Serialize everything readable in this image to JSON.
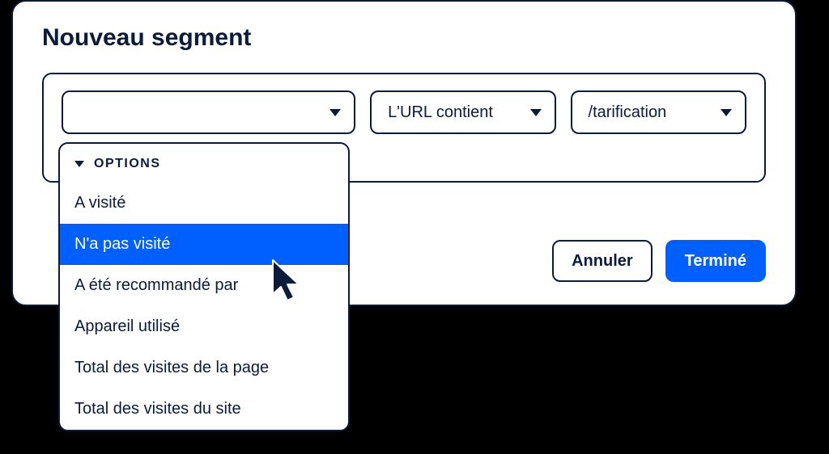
{
  "colors": {
    "page_bg": "#000000",
    "card_bg": "#ffffff",
    "border": "#0b1b3b",
    "text": "#0b1b3b",
    "accent": "#0060ff",
    "accent_text": "#ffffff"
  },
  "card": {
    "title": "Nouveau segment"
  },
  "selects": {
    "attribute": {
      "value": ""
    },
    "operator": {
      "value": "L'URL contient"
    },
    "target": {
      "value": "/tarification"
    }
  },
  "dropdown": {
    "header": "OPTIONS",
    "selected_index": 1,
    "items": [
      "A visité",
      "N'a pas visité",
      "A été recommandé par",
      "Appareil utilisé",
      "Total des visites de la page",
      "Total des visites du site"
    ]
  },
  "actions": {
    "cancel": "Annuler",
    "done": "Terminé"
  }
}
